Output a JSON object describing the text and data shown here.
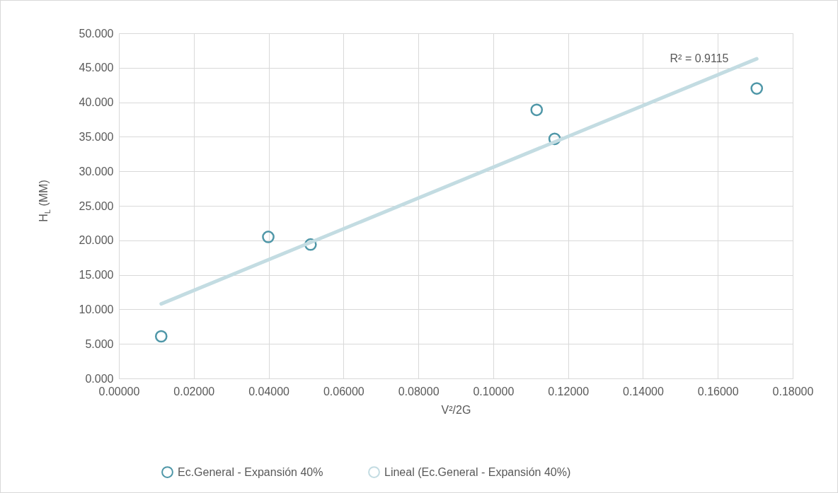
{
  "chart_data": {
    "type": "scatter",
    "xlabel": "V²/2G",
    "ylabel": "H$_{L}$ (MM)",
    "xlim": [
      0,
      0.18
    ],
    "ylim": [
      0,
      50
    ],
    "xticks": [
      {
        "value": 0,
        "label": "0.00000"
      },
      {
        "value": 0.02,
        "label": "0.02000"
      },
      {
        "value": 0.04,
        "label": "0.04000"
      },
      {
        "value": 0.06,
        "label": "0.06000"
      },
      {
        "value": 0.08,
        "label": "0.08000"
      },
      {
        "value": 0.1,
        "label": "0.10000"
      },
      {
        "value": 0.12,
        "label": "0.12000"
      },
      {
        "value": 0.14,
        "label": "0.14000"
      },
      {
        "value": 0.16,
        "label": "0.16000"
      },
      {
        "value": 0.18,
        "label": "0.18000"
      }
    ],
    "yticks": [
      {
        "value": 0,
        "label": "0.000"
      },
      {
        "value": 5,
        "label": "5.000"
      },
      {
        "value": 10,
        "label": "10.000"
      },
      {
        "value": 15,
        "label": "15.000"
      },
      {
        "value": 20,
        "label": "20.000"
      },
      {
        "value": 25,
        "label": "25.000"
      },
      {
        "value": 30,
        "label": "30.000"
      },
      {
        "value": 35,
        "label": "35.000"
      },
      {
        "value": 40,
        "label": "40.000"
      },
      {
        "value": 45,
        "label": "45.000"
      },
      {
        "value": 50,
        "label": "50.000"
      }
    ],
    "series": [
      {
        "name": "Ec.General - Expansión 40%",
        "color": "#4f97a8",
        "marker": "circle",
        "x": [
          0.0113,
          0.0399,
          0.0512,
          0.1116,
          0.1164,
          0.1704
        ],
        "values": [
          6.1,
          20.5,
          19.4,
          38.9,
          34.7,
          42.0
        ]
      },
      {
        "name": "Lineal (Ec.General - Expansión 40%)",
        "type": "line",
        "color": "#c3dce2",
        "x": [
          0.0113,
          0.1704
        ],
        "values": [
          10.8,
          46.3
        ]
      }
    ],
    "annotations": [
      "R² = 0.9115"
    ],
    "grid": true,
    "legend": "bottom",
    "line_style": "solid"
  }
}
